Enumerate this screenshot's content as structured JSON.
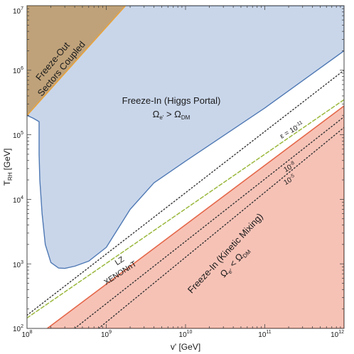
{
  "chart_data": {
    "type": "area",
    "xlabel": "v' [GeV]",
    "ylabel": "T",
    "ylabel_sub": "RH",
    "ylabel_unit": "[GeV]",
    "xscale": "log",
    "yscale": "log",
    "xlim": [
      100000000.0,
      1000000000000.0
    ],
    "ylim": [
      100.0,
      10000000.0
    ],
    "x_ticks": [
      {
        "value": 100000000.0,
        "base": "10",
        "exp": "8"
      },
      {
        "value": 1000000000.0,
        "base": "10",
        "exp": "9"
      },
      {
        "value": 10000000000.0,
        "base": "10",
        "exp": "10"
      },
      {
        "value": 100000000000.0,
        "base": "10",
        "exp": "11"
      },
      {
        "value": 1000000000000.0,
        "base": "10",
        "exp": "12"
      }
    ],
    "y_ticks": [
      {
        "value": 100.0,
        "base": "10",
        "exp": "2"
      },
      {
        "value": 1000.0,
        "base": "10",
        "exp": "3"
      },
      {
        "value": 10000.0,
        "base": "10",
        "exp": "4"
      },
      {
        "value": 100000.0,
        "base": "10",
        "exp": "5"
      },
      {
        "value": 1000000.0,
        "base": "10",
        "exp": "6"
      },
      {
        "value": 10000000.0,
        "base": "10",
        "exp": "7"
      }
    ],
    "colors": {
      "higgs_fill": "#c9d6ea",
      "higgs_edge": "#4f79b4",
      "freezeout_fill": "#bfa27a",
      "freezeout_edge": "#e8a33c",
      "kinetic_fill": "#f7c2b6",
      "kinetic_edge": "#e4684a",
      "dotted": "#333333",
      "dashed": "#9ab83c"
    },
    "regions": [
      {
        "id": "freeze-in-higgs",
        "label_line1": "Freeze-In (Higgs Portal)",
        "label_line2_main": "Ω",
        "label_line2_sub": "e'",
        "label_line2_rel": " > Ω",
        "label_line2_sub2": "DM",
        "points": [
          [
            100000000.0,
            10000000.0
          ],
          [
            1000000000000.0,
            10000000.0
          ],
          [
            1000000000000.0,
            2000000.0
          ],
          [
            100000000000.0,
            260000.0
          ],
          [
            10000000000.0,
            39000.0
          ],
          [
            4000000000.0,
            18000.0
          ],
          [
            2000000000.0,
            7000.0
          ],
          [
            1000000000.0,
            1800.0
          ],
          [
            600000000.0,
            1100.0
          ],
          [
            400000000.0,
            920.0
          ],
          [
            300000000.0,
            850.0
          ],
          [
            250000000.0,
            860.0
          ],
          [
            200000000.0,
            1050.0
          ],
          [
            170000000.0,
            2000.0
          ],
          [
            155000000.0,
            6000.0
          ],
          [
            145000000.0,
            20000.0
          ],
          [
            142000000.0,
            50000.0
          ],
          [
            142000000.0,
            160000.0
          ],
          [
            120000000.0,
            180000.0
          ],
          [
            100000000.0,
            200000.0
          ]
        ]
      },
      {
        "id": "freeze-out",
        "label_line1": "Freeze-Out",
        "label_line2": "Sectors Coupled",
        "points": [
          [
            100000000.0,
            200000.0
          ],
          [
            1750000000.0,
            10000000.0
          ],
          [
            100000000.0,
            10000000.0
          ]
        ]
      },
      {
        "id": "freeze-in-kinetic",
        "label_line1": "Freeze-In (Kinetic Mixing)",
        "label_line2_main": "Ω",
        "label_line2_sub": "e'",
        "label_line2_rel": " < Ω",
        "label_line2_sub2": "DM",
        "points": [
          [
            180000000.0,
            100.0
          ],
          [
            1000000000000.0,
            280000.0
          ],
          [
            1000000000000.0,
            100.0
          ]
        ]
      }
    ],
    "lines": [
      {
        "id": "eps-1e-11",
        "style": "dotted",
        "points": [
          [
            100000000.0,
            160.0
          ],
          [
            1000000000000.0,
            1000000.0
          ]
        ],
        "label_main": "ε = 10",
        "label_exp": "-11"
      },
      {
        "id": "xenon-lz",
        "style": "dashed",
        "points": [
          [
            100000000.0,
            145.0
          ],
          [
            1000000000000.0,
            350000.0
          ]
        ]
      },
      {
        "id": "eps-1e-8",
        "style": "dotted",
        "points": [
          [
            400000000.0,
            100.0
          ],
          [
            1000000000000.0,
            190000.0
          ]
        ],
        "label_main": "10",
        "label_exp": "-8"
      },
      {
        "id": "eps-1e-5",
        "style": "dotted",
        "points": [
          [
            800000000.0,
            100.0
          ],
          [
            1000000000000.0,
            130000.0
          ]
        ],
        "label_main": "10",
        "label_exp": "-5"
      }
    ],
    "annotations": [
      {
        "id": "lz-label",
        "text": "LZ"
      },
      {
        "id": "xenon-label",
        "text": "XENONnT"
      }
    ]
  }
}
